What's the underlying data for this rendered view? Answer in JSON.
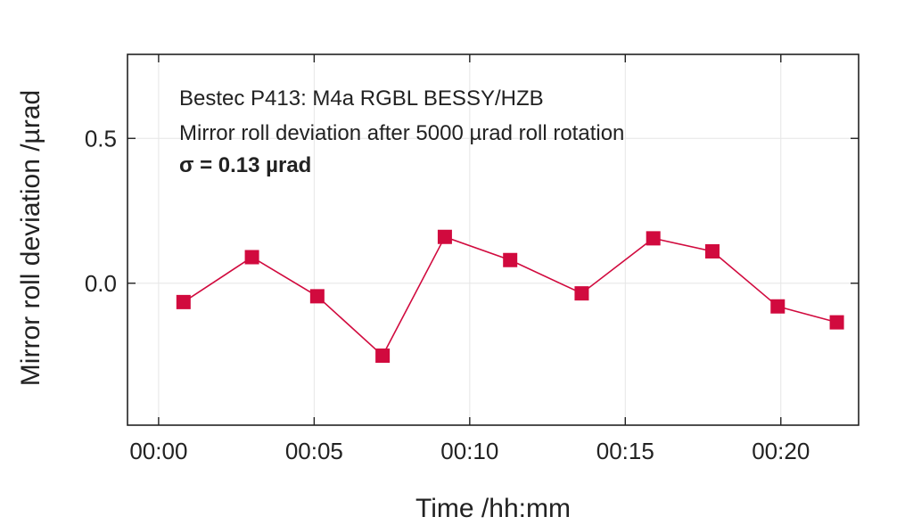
{
  "chart_data": {
    "type": "line",
    "xlabel": "Time /hh:mm",
    "ylabel": "Mirror roll deviation /µrad",
    "x_tick_labels": [
      "00:00",
      "00:05",
      "00:10",
      "00:15",
      "00:20"
    ],
    "x_tick_values": [
      0,
      5,
      10,
      15,
      20
    ],
    "y_tick_labels": [
      "0.5",
      "0.0"
    ],
    "y_tick_values": [
      0.5,
      0.0
    ],
    "xlim": [
      -1,
      22.5
    ],
    "ylim": [
      -0.49,
      0.79
    ],
    "grid": true,
    "annotations": [
      "Bestec P413: M4a RGBL BESSY/HZB",
      "Mirror roll deviation after 5000 µrad roll rotation",
      "σ = 0.13 µrad"
    ],
    "series": [
      {
        "x": [
          0.8,
          3.0,
          5.1,
          7.2,
          9.2,
          11.3,
          13.6,
          15.9,
          17.8,
          19.9,
          21.8
        ],
        "y": [
          -0.065,
          0.09,
          -0.045,
          -0.25,
          0.16,
          0.08,
          -0.035,
          0.155,
          0.11,
          -0.08,
          -0.135
        ],
        "color": "#d10a3e"
      }
    ]
  }
}
